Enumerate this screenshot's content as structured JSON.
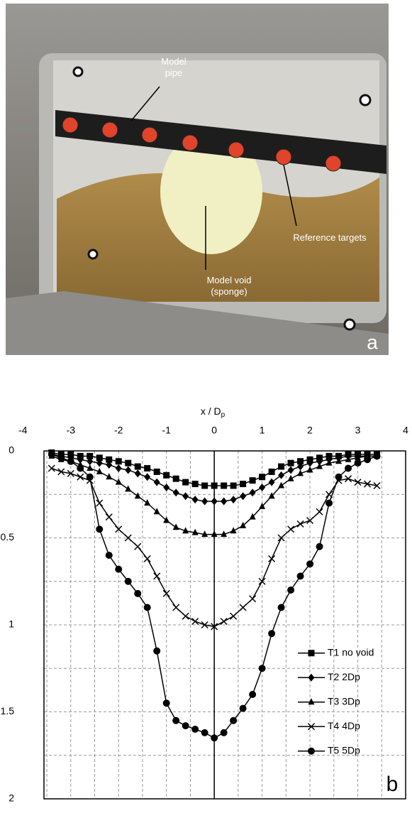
{
  "photo": {
    "labels": {
      "pipe": [
        "Model",
        "pipe"
      ],
      "targets": [
        "Reference targets"
      ],
      "void": [
        "Model void",
        "(sponge)"
      ]
    },
    "panel": "a"
  },
  "chart_data": {
    "type": "line",
    "panel": "b",
    "x_label": "x / D",
    "x_label_sub": "p",
    "xlim": [
      -3.56,
      4
    ],
    "xticks": [
      -4,
      -3,
      -2,
      -1,
      0,
      1,
      2,
      3,
      4
    ],
    "ylim": [
      0,
      2
    ],
    "y_inverted": true,
    "yticks": [
      0,
      0.5,
      1,
      1.5,
      2
    ],
    "grid": true,
    "legend": "lower right",
    "x": [
      -3.4,
      -3.2,
      -3.0,
      -2.8,
      -2.6,
      -2.4,
      -2.2,
      -2.0,
      -1.8,
      -1.6,
      -1.4,
      -1.2,
      -1.0,
      -0.8,
      -0.6,
      -0.4,
      -0.2,
      0,
      0.2,
      0.4,
      0.6,
      0.8,
      1.0,
      1.2,
      1.4,
      1.6,
      1.8,
      2.0,
      2.2,
      2.4,
      2.6,
      2.8,
      3.0,
      3.2,
      3.4
    ],
    "series": [
      {
        "name": "T1 no void",
        "color": "#000000",
        "marker": "square",
        "values": [
          0.01,
          0.02,
          0.02,
          0.03,
          0.03,
          0.04,
          0.05,
          0.06,
          0.07,
          0.09,
          0.1,
          0.12,
          0.14,
          0.16,
          0.18,
          0.19,
          0.2,
          0.2,
          0.2,
          0.2,
          0.19,
          0.17,
          0.15,
          0.12,
          0.09,
          0.07,
          0.06,
          0.05,
          0.04,
          0.03,
          0.03,
          0.02,
          0.02,
          0.02,
          0.02
        ]
      },
      {
        "name": "T2 2Dp",
        "color": "#000000",
        "marker": "diamond",
        "values": [
          0.02,
          0.03,
          0.04,
          0.05,
          0.06,
          0.07,
          0.08,
          0.1,
          0.11,
          0.13,
          0.15,
          0.18,
          0.21,
          0.24,
          0.26,
          0.28,
          0.29,
          0.29,
          0.29,
          0.28,
          0.26,
          0.24,
          0.21,
          0.18,
          0.14,
          0.11,
          0.09,
          0.07,
          0.06,
          0.05,
          0.04,
          0.03,
          0.03,
          0.03,
          0.03
        ]
      },
      {
        "name": "T3 3Dp",
        "color": "#000000",
        "marker": "triangle",
        "values": [
          0.03,
          0.05,
          0.06,
          0.08,
          0.1,
          0.12,
          0.15,
          0.18,
          0.22,
          0.26,
          0.3,
          0.35,
          0.4,
          0.44,
          0.46,
          0.47,
          0.48,
          0.48,
          0.48,
          0.46,
          0.43,
          0.38,
          0.32,
          0.26,
          0.2,
          0.16,
          0.13,
          0.11,
          0.09,
          0.07,
          0.06,
          0.05,
          0.04,
          0.03,
          0.03
        ]
      },
      {
        "name": "T4 4Dp",
        "color": "#000000",
        "marker": "x",
        "values": [
          0.1,
          0.12,
          0.13,
          0.15,
          0.17,
          0.3,
          0.38,
          0.45,
          0.5,
          0.55,
          0.62,
          0.72,
          0.82,
          0.9,
          0.95,
          0.98,
          1.0,
          1.01,
          0.98,
          0.95,
          0.9,
          0.85,
          0.75,
          0.62,
          0.5,
          0.45,
          0.42,
          0.4,
          0.35,
          0.25,
          0.17,
          0.16,
          0.18,
          0.19,
          0.2
        ]
      },
      {
        "name": "T5 5Dp",
        "color": "#000000",
        "marker": "circle",
        "values": [
          0.02,
          0.04,
          0.06,
          0.1,
          0.15,
          0.45,
          0.6,
          0.68,
          0.75,
          0.82,
          0.9,
          1.15,
          1.45,
          1.55,
          1.58,
          1.6,
          1.62,
          1.65,
          1.62,
          1.55,
          1.48,
          1.4,
          1.25,
          1.05,
          0.9,
          0.8,
          0.72,
          0.65,
          0.55,
          0.3,
          0.15,
          0.1,
          0.07,
          0.05,
          0.03
        ]
      }
    ]
  }
}
